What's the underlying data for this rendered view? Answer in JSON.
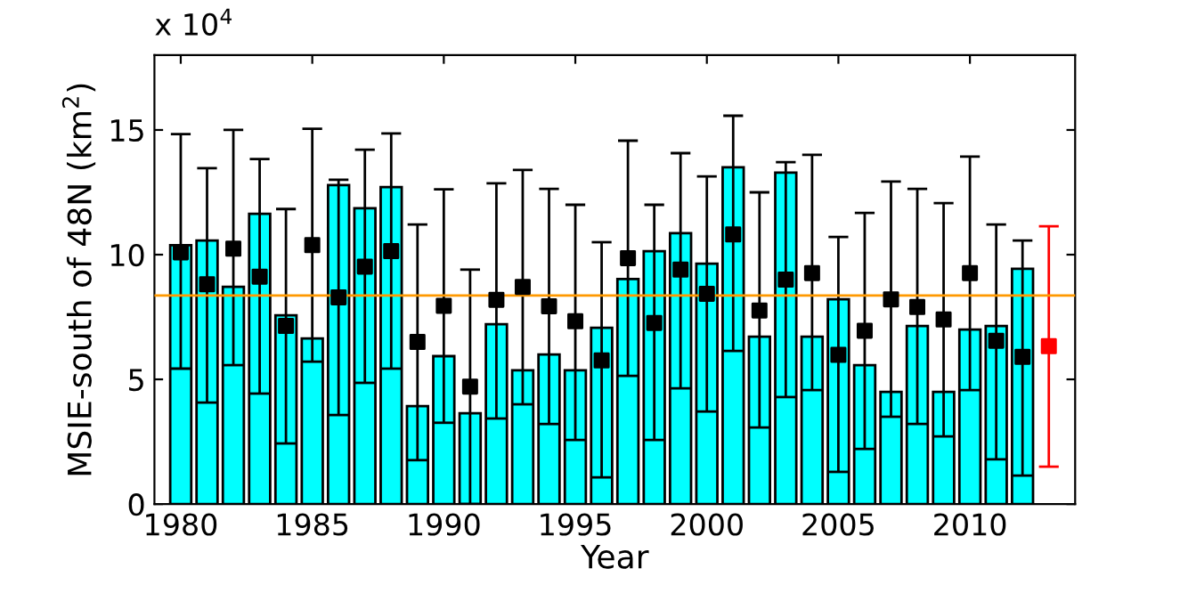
{
  "chart_data": {
    "type": "bar",
    "xlabel": "Year",
    "ylabel": "MSIE-south of 48N (km$^{2}$)",
    "annotations": [
      "x 10$^{4}$"
    ],
    "x": [
      1980,
      1981,
      1982,
      1983,
      1984,
      1985,
      1986,
      1987,
      1988,
      1989,
      1990,
      1991,
      1992,
      1993,
      1994,
      1995,
      1996,
      1997,
      1998,
      1999,
      2000,
      2001,
      2002,
      2003,
      2004,
      2005,
      2006,
      2007,
      2008,
      2009,
      2010,
      2011,
      2012
    ],
    "series": [
      {
        "color": "#00ffff",
        "values": [
          10.38,
          10.57,
          8.71,
          11.64,
          7.57,
          6.64,
          12.79,
          11.86,
          12.71,
          3.93,
          5.93,
          3.64,
          7.21,
          5.36,
          6.0,
          5.36,
          7.07,
          9.02,
          10.14,
          10.86,
          9.64,
          13.5,
          6.71,
          13.29,
          6.71,
          8.21,
          5.57,
          4.5,
          7.14,
          4.5,
          7.0,
          7.14,
          9.43
        ]
      },
      {
        "type": "scatter",
        "color": "#000000",
        "marker": "square",
        "values": [
          10.09,
          8.81,
          10.24,
          9.12,
          7.14,
          10.38,
          8.29,
          9.52,
          10.14,
          6.5,
          7.95,
          4.71,
          8.19,
          8.71,
          7.93,
          7.33,
          5.76,
          9.86,
          7.26,
          9.4,
          8.43,
          10.81,
          7.76,
          9.0,
          9.26,
          5.98,
          6.95,
          8.21,
          7.9,
          7.4,
          9.26,
          6.55,
          5.9
        ],
        "errors": [
          [
            5.43,
            14.83
          ],
          [
            4.07,
            13.47
          ],
          [
            5.57,
            15.0
          ],
          [
            4.43,
            13.83
          ],
          [
            2.43,
            11.83
          ],
          [
            5.71,
            15.05
          ],
          [
            3.57,
            13.0
          ],
          [
            4.86,
            14.21
          ],
          [
            5.43,
            14.86
          ],
          [
            1.76,
            11.21
          ],
          [
            3.26,
            12.62
          ],
          [
            0.0,
            9.4
          ],
          [
            3.43,
            12.86
          ],
          [
            4.0,
            13.4
          ],
          [
            3.21,
            12.64
          ],
          [
            2.57,
            12.0
          ],
          [
            1.07,
            10.5
          ],
          [
            5.14,
            14.57
          ],
          [
            2.57,
            12.0
          ],
          [
            4.64,
            14.07
          ],
          [
            3.71,
            13.14
          ],
          [
            6.14,
            15.57
          ],
          [
            3.07,
            12.5
          ],
          [
            4.29,
            13.71
          ],
          [
            4.57,
            14.0
          ],
          [
            1.29,
            10.71
          ],
          [
            2.21,
            11.67
          ],
          [
            3.5,
            12.93
          ],
          [
            3.21,
            12.64
          ],
          [
            2.71,
            12.07
          ],
          [
            4.57,
            13.93
          ],
          [
            1.79,
            11.21
          ],
          [
            1.14,
            10.57
          ]
        ]
      },
      {
        "type": "scatter",
        "color": "#ff0000",
        "marker": "square",
        "x": [
          2013
        ],
        "values": [
          6.33
        ],
        "errors": [
          [
            1.5,
            11.14
          ]
        ]
      }
    ],
    "ref_lines": [
      {
        "axis": "y",
        "value": 8.36,
        "color": "#ff9900"
      }
    ],
    "xlim": [
      1979,
      2014
    ],
    "ylim": [
      0,
      18
    ],
    "xticks": [
      1980,
      1985,
      1990,
      1995,
      2000,
      2005,
      2010
    ],
    "yticks": [
      0,
      5,
      10,
      15
    ],
    "grid": false,
    "legend": false
  }
}
